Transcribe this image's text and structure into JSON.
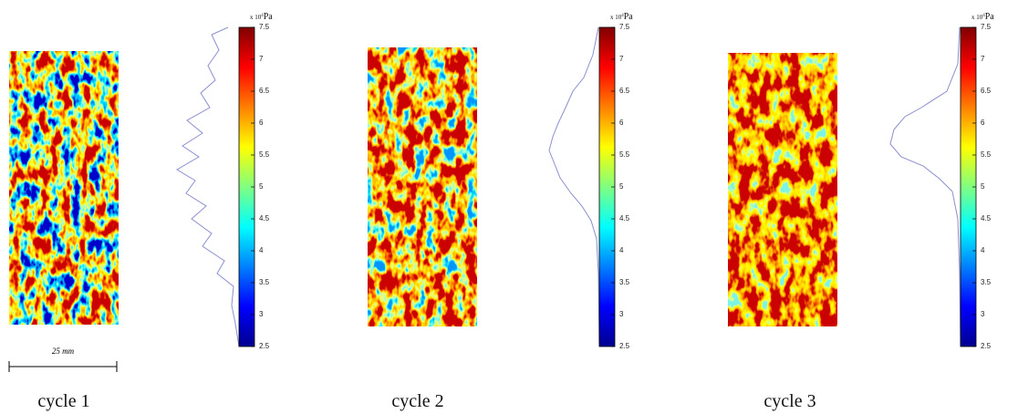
{
  "unit": {
    "base": "x 10",
    "exponent": "4",
    "name": "Pa"
  },
  "colorbar_ticks": [
    7.5,
    7,
    6.5,
    6,
    5.5,
    5,
    4.5,
    4,
    3.5,
    3,
    2.5
  ],
  "scale_bar": "25 mm",
  "panels": [
    {
      "caption": "cycle 1"
    },
    {
      "caption": "cycle 2"
    },
    {
      "caption": "cycle 3"
    }
  ]
}
